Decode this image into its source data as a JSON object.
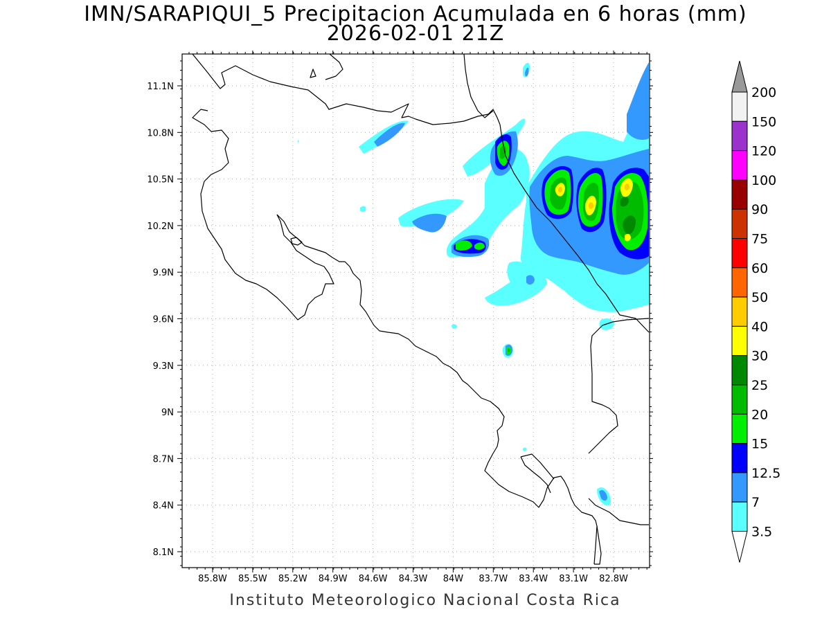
{
  "title": {
    "line1": "IMN/SARAPIQUI_5 Precipitacion Acumulada en 6 horas (mm)",
    "line2": "2026-02-01 21Z"
  },
  "footer": "Instituto Meteorologico Nacional Costa Rica",
  "map": {
    "lon_range": [
      -86.0,
      -82.6
    ],
    "lat_range": [
      8.0,
      11.3
    ],
    "lon_ticks": [
      "85.8W",
      "85.5W",
      "85.2W",
      "84.9W",
      "84.6W",
      "84.3W",
      "84W",
      "83.7W",
      "83.4W",
      "83.1W",
      "82.8W"
    ],
    "lat_ticks": [
      "11.1N",
      "10.8N",
      "10.5N",
      "10.2N",
      "9.9N",
      "9.6N",
      "9.3N",
      "9N",
      "8.7N",
      "8.4N",
      "8.1N"
    ],
    "gridlines": "dotted"
  },
  "colorbar": {
    "levels": [
      "3.5",
      "7",
      "12.5",
      "15",
      "20",
      "25",
      "30",
      "40",
      "50",
      "60",
      "75",
      "90",
      "100",
      "120",
      "150",
      "200"
    ],
    "colors": [
      "#5affff",
      "#3399ff",
      "#0000ff",
      "#00ee00",
      "#00bb00",
      "#008800",
      "#ffff00",
      "#ffcc00",
      "#ff6600",
      "#ff0000",
      "#cc3300",
      "#990000",
      "#ff00ff",
      "#9933cc",
      "#f2f2f2",
      "#999999"
    ],
    "upper_arrow_color": "#999999",
    "lower_arrow_color": "#ffffff"
  }
}
